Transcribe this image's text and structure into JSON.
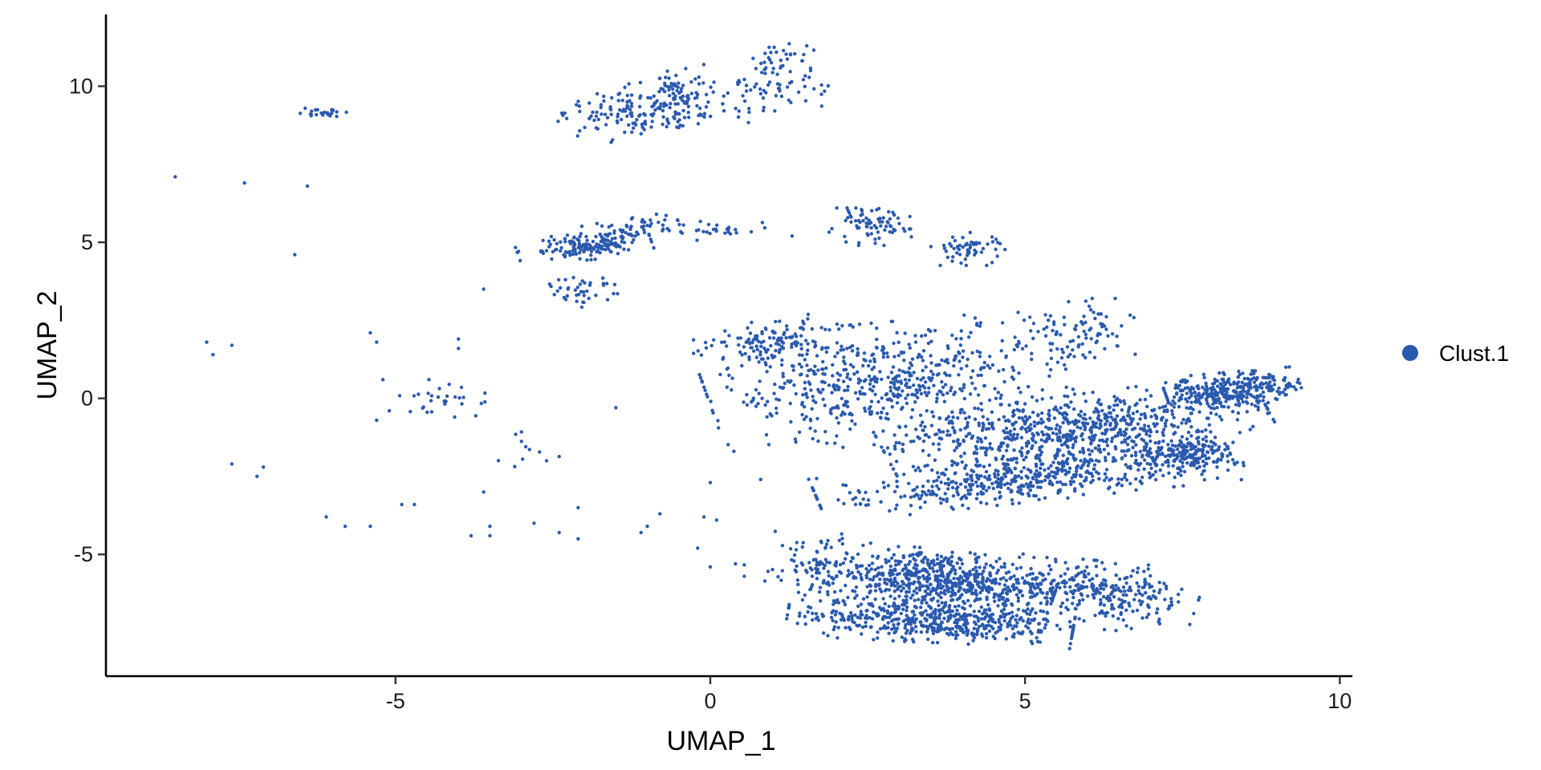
{
  "chart_data": {
    "type": "scatter",
    "title": "",
    "xlabel": "UMAP_1",
    "ylabel": "UMAP_2",
    "xlim": [
      -9.6,
      10.2
    ],
    "ylim": [
      -8.9,
      12.3
    ],
    "x_ticks": [
      -5,
      0,
      5,
      10
    ],
    "y_ticks": [
      -5,
      0,
      5,
      10
    ],
    "grid": false,
    "legend_position": "right",
    "point_color": "#2A5AAE",
    "series": [
      {
        "name": "Clust.1",
        "color": "#2A5AAE",
        "regions": [
          {
            "cx": -1.3,
            "cy": 9.1,
            "rx": 0.9,
            "ry": 0.7,
            "rot": 30,
            "n": 120
          },
          {
            "cx": -0.45,
            "cy": 9.7,
            "rx": 0.45,
            "ry": 0.9,
            "rot": 0,
            "n": 90
          },
          {
            "cx": 0.8,
            "cy": 9.8,
            "rx": 0.9,
            "ry": 0.7,
            "rot": 20,
            "n": 70
          },
          {
            "cx": 1.1,
            "cy": 10.9,
            "rx": 0.5,
            "ry": 0.35,
            "rot": 20,
            "n": 30
          },
          {
            "cx": -6.2,
            "cy": 9.15,
            "rx": 0.35,
            "ry": 0.12,
            "rot": 0,
            "n": 25
          },
          {
            "cx": -2.0,
            "cy": 4.85,
            "rx": 0.9,
            "ry": 0.35,
            "rot": 10,
            "n": 140
          },
          {
            "cx": -1.3,
            "cy": 5.4,
            "rx": 0.7,
            "ry": 0.3,
            "rot": 20,
            "n": 60
          },
          {
            "cx": -2.0,
            "cy": 3.5,
            "rx": 0.5,
            "ry": 0.4,
            "rot": 30,
            "n": 40
          },
          {
            "cx": 0.2,
            "cy": 5.4,
            "rx": 0.8,
            "ry": 0.25,
            "rot": 5,
            "n": 30
          },
          {
            "cx": 2.5,
            "cy": 5.5,
            "rx": 0.6,
            "ry": 0.5,
            "rot": 0,
            "n": 80
          },
          {
            "cx": 4.1,
            "cy": 4.8,
            "rx": 0.5,
            "ry": 0.45,
            "rot": 0,
            "n": 60
          },
          {
            "cx": 1.0,
            "cy": 1.8,
            "rx": 1.0,
            "ry": 0.6,
            "rot": 25,
            "n": 120
          },
          {
            "cx": 2.8,
            "cy": 0.5,
            "rx": 2.4,
            "ry": 1.6,
            "rot": 10,
            "n": 600
          },
          {
            "cx": 5.8,
            "cy": -1.0,
            "rx": 2.6,
            "ry": 0.9,
            "rot": 15,
            "n": 700
          },
          {
            "cx": 5.0,
            "cy": -2.6,
            "rx": 2.8,
            "ry": 0.6,
            "rot": 12,
            "n": 500
          },
          {
            "cx": 8.3,
            "cy": 0.3,
            "rx": 0.9,
            "ry": 0.45,
            "rot": 10,
            "n": 300
          },
          {
            "cx": 7.6,
            "cy": -1.8,
            "rx": 0.7,
            "ry": 0.45,
            "rot": 5,
            "n": 180
          },
          {
            "cx": 5.8,
            "cy": 2.0,
            "rx": 0.8,
            "ry": 1.0,
            "rot": 0,
            "n": 90
          },
          {
            "cx": 3.6,
            "cy": -5.8,
            "rx": 1.6,
            "ry": 0.8,
            "rot": -10,
            "n": 650
          },
          {
            "cx": 3.5,
            "cy": -7.1,
            "rx": 1.9,
            "ry": 0.6,
            "rot": -5,
            "n": 500
          },
          {
            "cx": 6.2,
            "cy": -6.3,
            "rx": 1.3,
            "ry": 0.9,
            "rot": -10,
            "n": 300
          },
          {
            "cx": 1.5,
            "cy": -5.2,
            "rx": 0.8,
            "ry": 0.8,
            "rot": 0,
            "n": 60
          },
          {
            "cx": -4.3,
            "cy": 0.0,
            "rx": 0.6,
            "ry": 0.5,
            "rot": 0,
            "n": 30
          },
          {
            "cx": -3.0,
            "cy": -1.6,
            "rx": 0.5,
            "ry": 0.5,
            "rot": 0,
            "n": 10
          }
        ],
        "outliers": [
          [
            -8.5,
            7.1
          ],
          [
            -7.4,
            6.9
          ],
          [
            -6.4,
            6.8
          ],
          [
            -6.6,
            4.6
          ],
          [
            -8.0,
            1.8
          ],
          [
            -7.9,
            1.4
          ],
          [
            -7.6,
            1.7
          ],
          [
            -7.6,
            -2.1
          ],
          [
            -7.2,
            -2.5
          ],
          [
            -7.1,
            -2.2
          ],
          [
            -6.1,
            -3.8
          ],
          [
            -5.8,
            -4.1
          ],
          [
            -5.4,
            -4.1
          ],
          [
            -5.4,
            2.1
          ],
          [
            -5.3,
            1.8
          ],
          [
            -5.2,
            0.6
          ],
          [
            -5.1,
            -0.4
          ],
          [
            -5.3,
            -0.7
          ],
          [
            -4.9,
            -3.4
          ],
          [
            -4.7,
            -3.4
          ],
          [
            -4.0,
            1.9
          ],
          [
            -4.0,
            1.6
          ],
          [
            -3.6,
            -3.0
          ],
          [
            -3.5,
            -4.1
          ],
          [
            -3.6,
            3.5
          ],
          [
            -3.5,
            -4.4
          ],
          [
            -3.8,
            -4.4
          ],
          [
            -2.8,
            -4.0
          ],
          [
            -2.6,
            -2.0
          ],
          [
            -2.4,
            -4.3
          ],
          [
            -2.1,
            -3.5
          ],
          [
            -2.1,
            -4.5
          ],
          [
            -1.5,
            -0.3
          ],
          [
            -1.1,
            -4.3
          ],
          [
            -1.0,
            -4.1
          ],
          [
            -0.8,
            -3.7
          ],
          [
            -0.2,
            -4.8
          ],
          [
            -0.1,
            -3.8
          ],
          [
            0.0,
            -2.7
          ],
          [
            0.1,
            -3.9
          ],
          [
            0.0,
            -5.4
          ],
          [
            0.4,
            -5.3
          ],
          [
            1.3,
            5.2
          ],
          [
            0.8,
            -2.6
          ],
          [
            -1.8,
            5.6
          ],
          [
            -2.5,
            4.7
          ]
        ]
      }
    ]
  }
}
